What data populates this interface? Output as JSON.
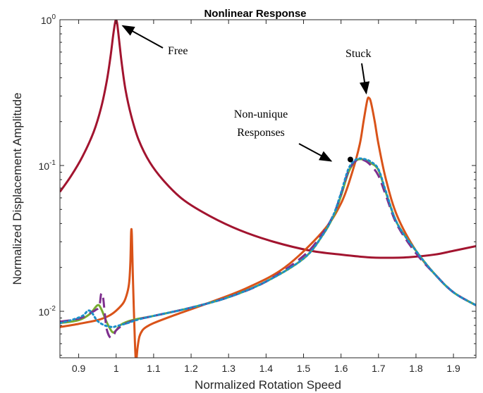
{
  "chart_data": {
    "type": "line",
    "title": "Nonlinear Response",
    "xlabel": "Normalized Rotation Speed",
    "ylabel": "Normalized Displacement Amplitude",
    "xlim": [
      0.85,
      1.96
    ],
    "ylim": [
      0.0048,
      1.0
    ],
    "yscale": "log",
    "grid": false,
    "xticks": [
      "0.9",
      "1",
      "1.1",
      "1.2",
      "1.3",
      "1.4",
      "1.5",
      "1.6",
      "1.7",
      "1.8",
      "1.9"
    ],
    "yticks": [
      {
        "value": 1,
        "base": "10",
        "exp": "0"
      },
      {
        "value": 0.1,
        "base": "10",
        "exp": "-1"
      },
      {
        "value": 0.01,
        "base": "10",
        "exp": "-2"
      }
    ],
    "series": [
      {
        "color": "#a2142f",
        "style": "solid",
        "x": [
          0.85,
          0.88,
          0.91,
          0.94,
          0.96,
          0.975,
          0.985,
          0.992,
          0.997,
          1.0,
          1.003,
          1.008,
          1.015,
          1.025,
          1.04,
          1.06,
          1.09,
          1.13,
          1.18,
          1.25,
          1.33,
          1.42,
          1.52,
          1.6,
          1.67,
          1.72,
          1.78,
          1.85,
          1.9,
          1.96
        ],
        "y": [
          0.066,
          0.085,
          0.115,
          0.17,
          0.25,
          0.38,
          0.56,
          0.78,
          0.95,
          1.0,
          0.93,
          0.72,
          0.5,
          0.33,
          0.22,
          0.15,
          0.105,
          0.077,
          0.058,
          0.045,
          0.036,
          0.03,
          0.026,
          0.0245,
          0.0235,
          0.0233,
          0.0235,
          0.0245,
          0.026,
          0.028
        ]
      },
      {
        "color": "#d95319",
        "style": "solid",
        "x": [
          0.85,
          0.9,
          0.95,
          0.98,
          1.0,
          1.02,
          1.03,
          1.035,
          1.038,
          1.04,
          1.042,
          1.045,
          1.05,
          1.053,
          1.057,
          1.062,
          1.07,
          1.08,
          1.1,
          1.15,
          1.25,
          1.35,
          1.45,
          1.55,
          1.6,
          1.63,
          1.65,
          1.66,
          1.67,
          1.675,
          1.68,
          1.69,
          1.7,
          1.72,
          1.75,
          1.8,
          1.85,
          1.9,
          1.96
        ],
        "y": [
          0.0078,
          0.0082,
          0.0087,
          0.0093,
          0.0101,
          0.0115,
          0.0135,
          0.016,
          0.022,
          0.035,
          0.033,
          0.016,
          0.0062,
          0.0045,
          0.0056,
          0.0067,
          0.0074,
          0.0078,
          0.0083,
          0.0093,
          0.0115,
          0.0145,
          0.02,
          0.035,
          0.055,
          0.09,
          0.14,
          0.2,
          0.28,
          0.29,
          0.27,
          0.2,
          0.14,
          0.08,
          0.045,
          0.026,
          0.018,
          0.0135,
          0.011
        ]
      },
      {
        "color": "#77ac30",
        "style": "solid",
        "x": [
          0.85,
          0.9,
          0.93,
          0.95,
          0.96,
          0.975,
          0.99,
          1.0,
          1.01,
          1.03,
          1.06,
          1.1,
          1.2,
          1.3,
          1.4,
          1.5,
          1.55,
          1.58,
          1.6,
          1.62,
          1.64,
          1.66,
          1.68,
          1.7,
          1.72,
          1.75,
          1.8,
          1.85,
          1.9,
          1.96
        ],
        "y": [
          0.0083,
          0.0087,
          0.0096,
          0.011,
          0.0104,
          0.0084,
          0.0072,
          0.0074,
          0.008,
          0.0085,
          0.0089,
          0.0093,
          0.0106,
          0.0125,
          0.016,
          0.023,
          0.033,
          0.045,
          0.062,
          0.09,
          0.108,
          0.11,
          0.104,
          0.093,
          0.065,
          0.04,
          0.026,
          0.018,
          0.0135,
          0.011
        ]
      },
      {
        "color": "#7e2f8e",
        "style": "dashed",
        "x": [
          0.85,
          0.9,
          0.93,
          0.945,
          0.955,
          0.96,
          0.965,
          0.97,
          0.975,
          0.985,
          0.995,
          1.0,
          1.02,
          1.05,
          1.1,
          1.2,
          1.3,
          1.4,
          1.5,
          1.55,
          1.58,
          1.6,
          1.62,
          1.64,
          1.66,
          1.68,
          1.7,
          1.72,
          1.75,
          1.8,
          1.85,
          1.9,
          1.96
        ],
        "y": [
          0.0085,
          0.0089,
          0.0097,
          0.0102,
          0.0108,
          0.0132,
          0.0125,
          0.0095,
          0.0075,
          0.0066,
          0.007,
          0.0074,
          0.0081,
          0.0087,
          0.0093,
          0.0106,
          0.0125,
          0.016,
          0.024,
          0.034,
          0.046,
          0.064,
          0.092,
          0.108,
          0.109,
          0.1,
          0.085,
          0.062,
          0.039,
          0.025,
          0.018,
          0.0135,
          0.011
        ]
      },
      {
        "color": "#1a8fc9",
        "style": "dotted",
        "x": [
          0.85,
          0.88,
          0.91,
          0.925,
          0.935,
          0.95,
          0.97,
          0.99,
          1.0,
          1.03,
          1.06,
          1.1,
          1.2,
          1.3,
          1.4,
          1.5,
          1.55,
          1.58,
          1.6,
          1.62,
          1.64,
          1.66,
          1.68,
          1.7,
          1.72,
          1.75,
          1.8,
          1.85,
          1.9,
          1.96
        ],
        "y": [
          0.0083,
          0.0087,
          0.0093,
          0.0101,
          0.0098,
          0.0086,
          0.008,
          0.0078,
          0.0079,
          0.0083,
          0.0088,
          0.0093,
          0.0106,
          0.0125,
          0.016,
          0.023,
          0.033,
          0.046,
          0.065,
          0.095,
          0.11,
          0.111,
          0.106,
          0.094,
          0.066,
          0.04,
          0.026,
          0.018,
          0.0135,
          0.011
        ]
      }
    ],
    "marker": {
      "x": 1.625,
      "y": 0.11
    },
    "annotations": [
      {
        "text": "Free",
        "point": {
          "x": 1.01,
          "y": 0.95
        }
      },
      {
        "text": "Stuck",
        "point": {
          "x": 1.673,
          "y": 0.32
        }
      },
      {
        "lines": [
          "Non-unique",
          "Responses"
        ],
        "point": {
          "x": 1.6,
          "y": 0.105
        }
      }
    ]
  }
}
